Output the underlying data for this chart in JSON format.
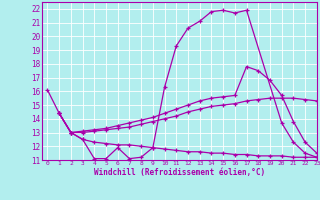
{
  "xlabel": "Windchill (Refroidissement éolien,°C)",
  "bg_color": "#b2eeee",
  "line_color": "#aa00aa",
  "grid_color": "#ffffff",
  "ylim": [
    11,
    22.5
  ],
  "xlim": [
    -0.5,
    23
  ],
  "yticks": [
    11,
    12,
    13,
    14,
    15,
    16,
    17,
    18,
    19,
    20,
    21,
    22
  ],
  "xticks": [
    0,
    1,
    2,
    3,
    4,
    5,
    6,
    7,
    8,
    9,
    10,
    11,
    12,
    13,
    14,
    15,
    16,
    17,
    18,
    19,
    20,
    21,
    22,
    23
  ],
  "series": [
    {
      "x": [
        0,
        1,
        2,
        3,
        4,
        5,
        6,
        7,
        8,
        9,
        10,
        11,
        12,
        13,
        14,
        15,
        16,
        17,
        20,
        21,
        22,
        23
      ],
      "y": [
        16.1,
        14.4,
        13.0,
        12.5,
        11.1,
        11.1,
        11.9,
        11.1,
        11.2,
        11.9,
        16.3,
        19.3,
        20.6,
        21.1,
        21.8,
        21.9,
        21.7,
        21.9,
        13.7,
        12.3,
        11.5,
        11.2
      ]
    },
    {
      "x": [
        1,
        2,
        3,
        4,
        5,
        6,
        7,
        8,
        9,
        10,
        11,
        12,
        13,
        14,
        15,
        16,
        17,
        18,
        19,
        20,
        21,
        22,
        23
      ],
      "y": [
        14.4,
        13.0,
        13.1,
        13.2,
        13.3,
        13.5,
        13.7,
        13.9,
        14.1,
        14.4,
        14.7,
        15.0,
        15.3,
        15.5,
        15.6,
        15.7,
        17.8,
        17.5,
        16.8,
        15.7,
        13.8,
        12.3,
        11.5
      ]
    },
    {
      "x": [
        1,
        2,
        3,
        4,
        5,
        6,
        7,
        8,
        9,
        10,
        11,
        12,
        13,
        14,
        15,
        16,
        17,
        18,
        19,
        20,
        21,
        22,
        23
      ],
      "y": [
        14.4,
        13.0,
        13.0,
        13.1,
        13.2,
        13.3,
        13.4,
        13.6,
        13.8,
        14.0,
        14.2,
        14.5,
        14.7,
        14.9,
        15.0,
        15.1,
        15.3,
        15.4,
        15.5,
        15.5,
        15.5,
        15.4,
        15.3
      ]
    },
    {
      "x": [
        1,
        2,
        3,
        4,
        5,
        6,
        7,
        8,
        9,
        10,
        11,
        12,
        13,
        14,
        15,
        16,
        17,
        18,
        19,
        20,
        21,
        22,
        23
      ],
      "y": [
        14.4,
        13.0,
        12.5,
        12.3,
        12.2,
        12.1,
        12.1,
        12.0,
        11.9,
        11.8,
        11.7,
        11.6,
        11.6,
        11.5,
        11.5,
        11.4,
        11.4,
        11.3,
        11.3,
        11.3,
        11.2,
        11.2,
        11.2
      ]
    }
  ]
}
